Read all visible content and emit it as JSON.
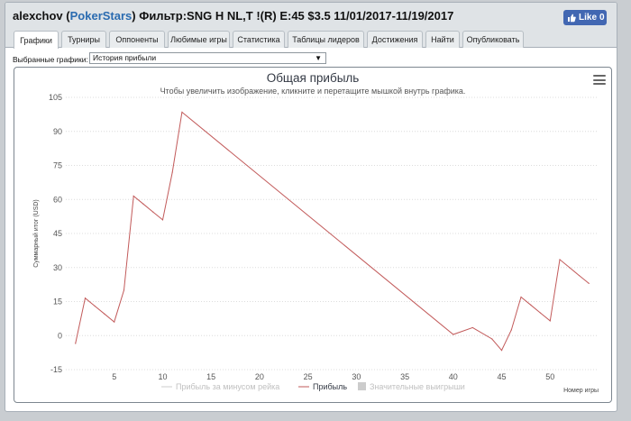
{
  "header": {
    "user": "alexchov",
    "paren_open": "(",
    "site": "PokerStars",
    "filter": ") Фильтр:SNG H NL,T !(R) E:45 $3.5 11/01/2017-11/19/2017",
    "like_label": "Like",
    "like_count": "0"
  },
  "tabs": [
    {
      "label": "Графики",
      "active": true
    },
    {
      "label": "Турниры"
    },
    {
      "label": "Оппоненты"
    },
    {
      "label": "Любимые игры"
    },
    {
      "label": "Статистика"
    },
    {
      "label": "Таблицы лидеров"
    },
    {
      "label": "Достижения"
    },
    {
      "label": "Найти"
    },
    {
      "label": "Опубликовать"
    }
  ],
  "selector": {
    "label": "Выбранные графики:",
    "value": "История прибыли",
    "arrow": "▼"
  },
  "chart_data": {
    "type": "line",
    "title": "Общая прибыль",
    "subtitle": "Чтобы увеличить изображение, кликните и перетащите мышкой внутрь графика.",
    "xlabel": "Номер игры",
    "ylabel": "Суммарный итог (USD)",
    "ylim": [
      -15,
      105
    ],
    "xlim": [
      0,
      55
    ],
    "yticks": [
      105,
      90,
      75,
      60,
      45,
      30,
      15,
      0,
      -15
    ],
    "xticks": [
      5,
      10,
      15,
      20,
      25,
      30,
      35,
      40,
      45,
      50
    ],
    "grid": true,
    "legend_position": "bottom",
    "line_color": "#c25a5a",
    "series": [
      {
        "name": "Прибыль",
        "x": [
          1,
          2,
          3,
          4,
          5,
          6,
          7,
          8,
          9,
          10,
          11,
          12,
          40,
          42,
          44,
          45,
          46,
          47,
          48,
          49,
          50,
          51,
          52,
          53,
          54
        ],
        "y": [
          -3.5,
          16.5,
          13,
          9.5,
          6,
          20,
          61.5,
          58,
          54.5,
          51,
          72,
          98.5,
          0.5,
          3.5,
          -1.5,
          -6.5,
          2.5,
          17,
          13.5,
          10,
          6.5,
          33.5,
          30,
          26.5,
          23
        ]
      }
    ],
    "legend": [
      {
        "name": "Прибыль за минусом рейка",
        "active": false
      },
      {
        "name": "Прибыль",
        "active": true
      },
      {
        "name": "Значительные выигрыши",
        "active": false
      }
    ]
  }
}
